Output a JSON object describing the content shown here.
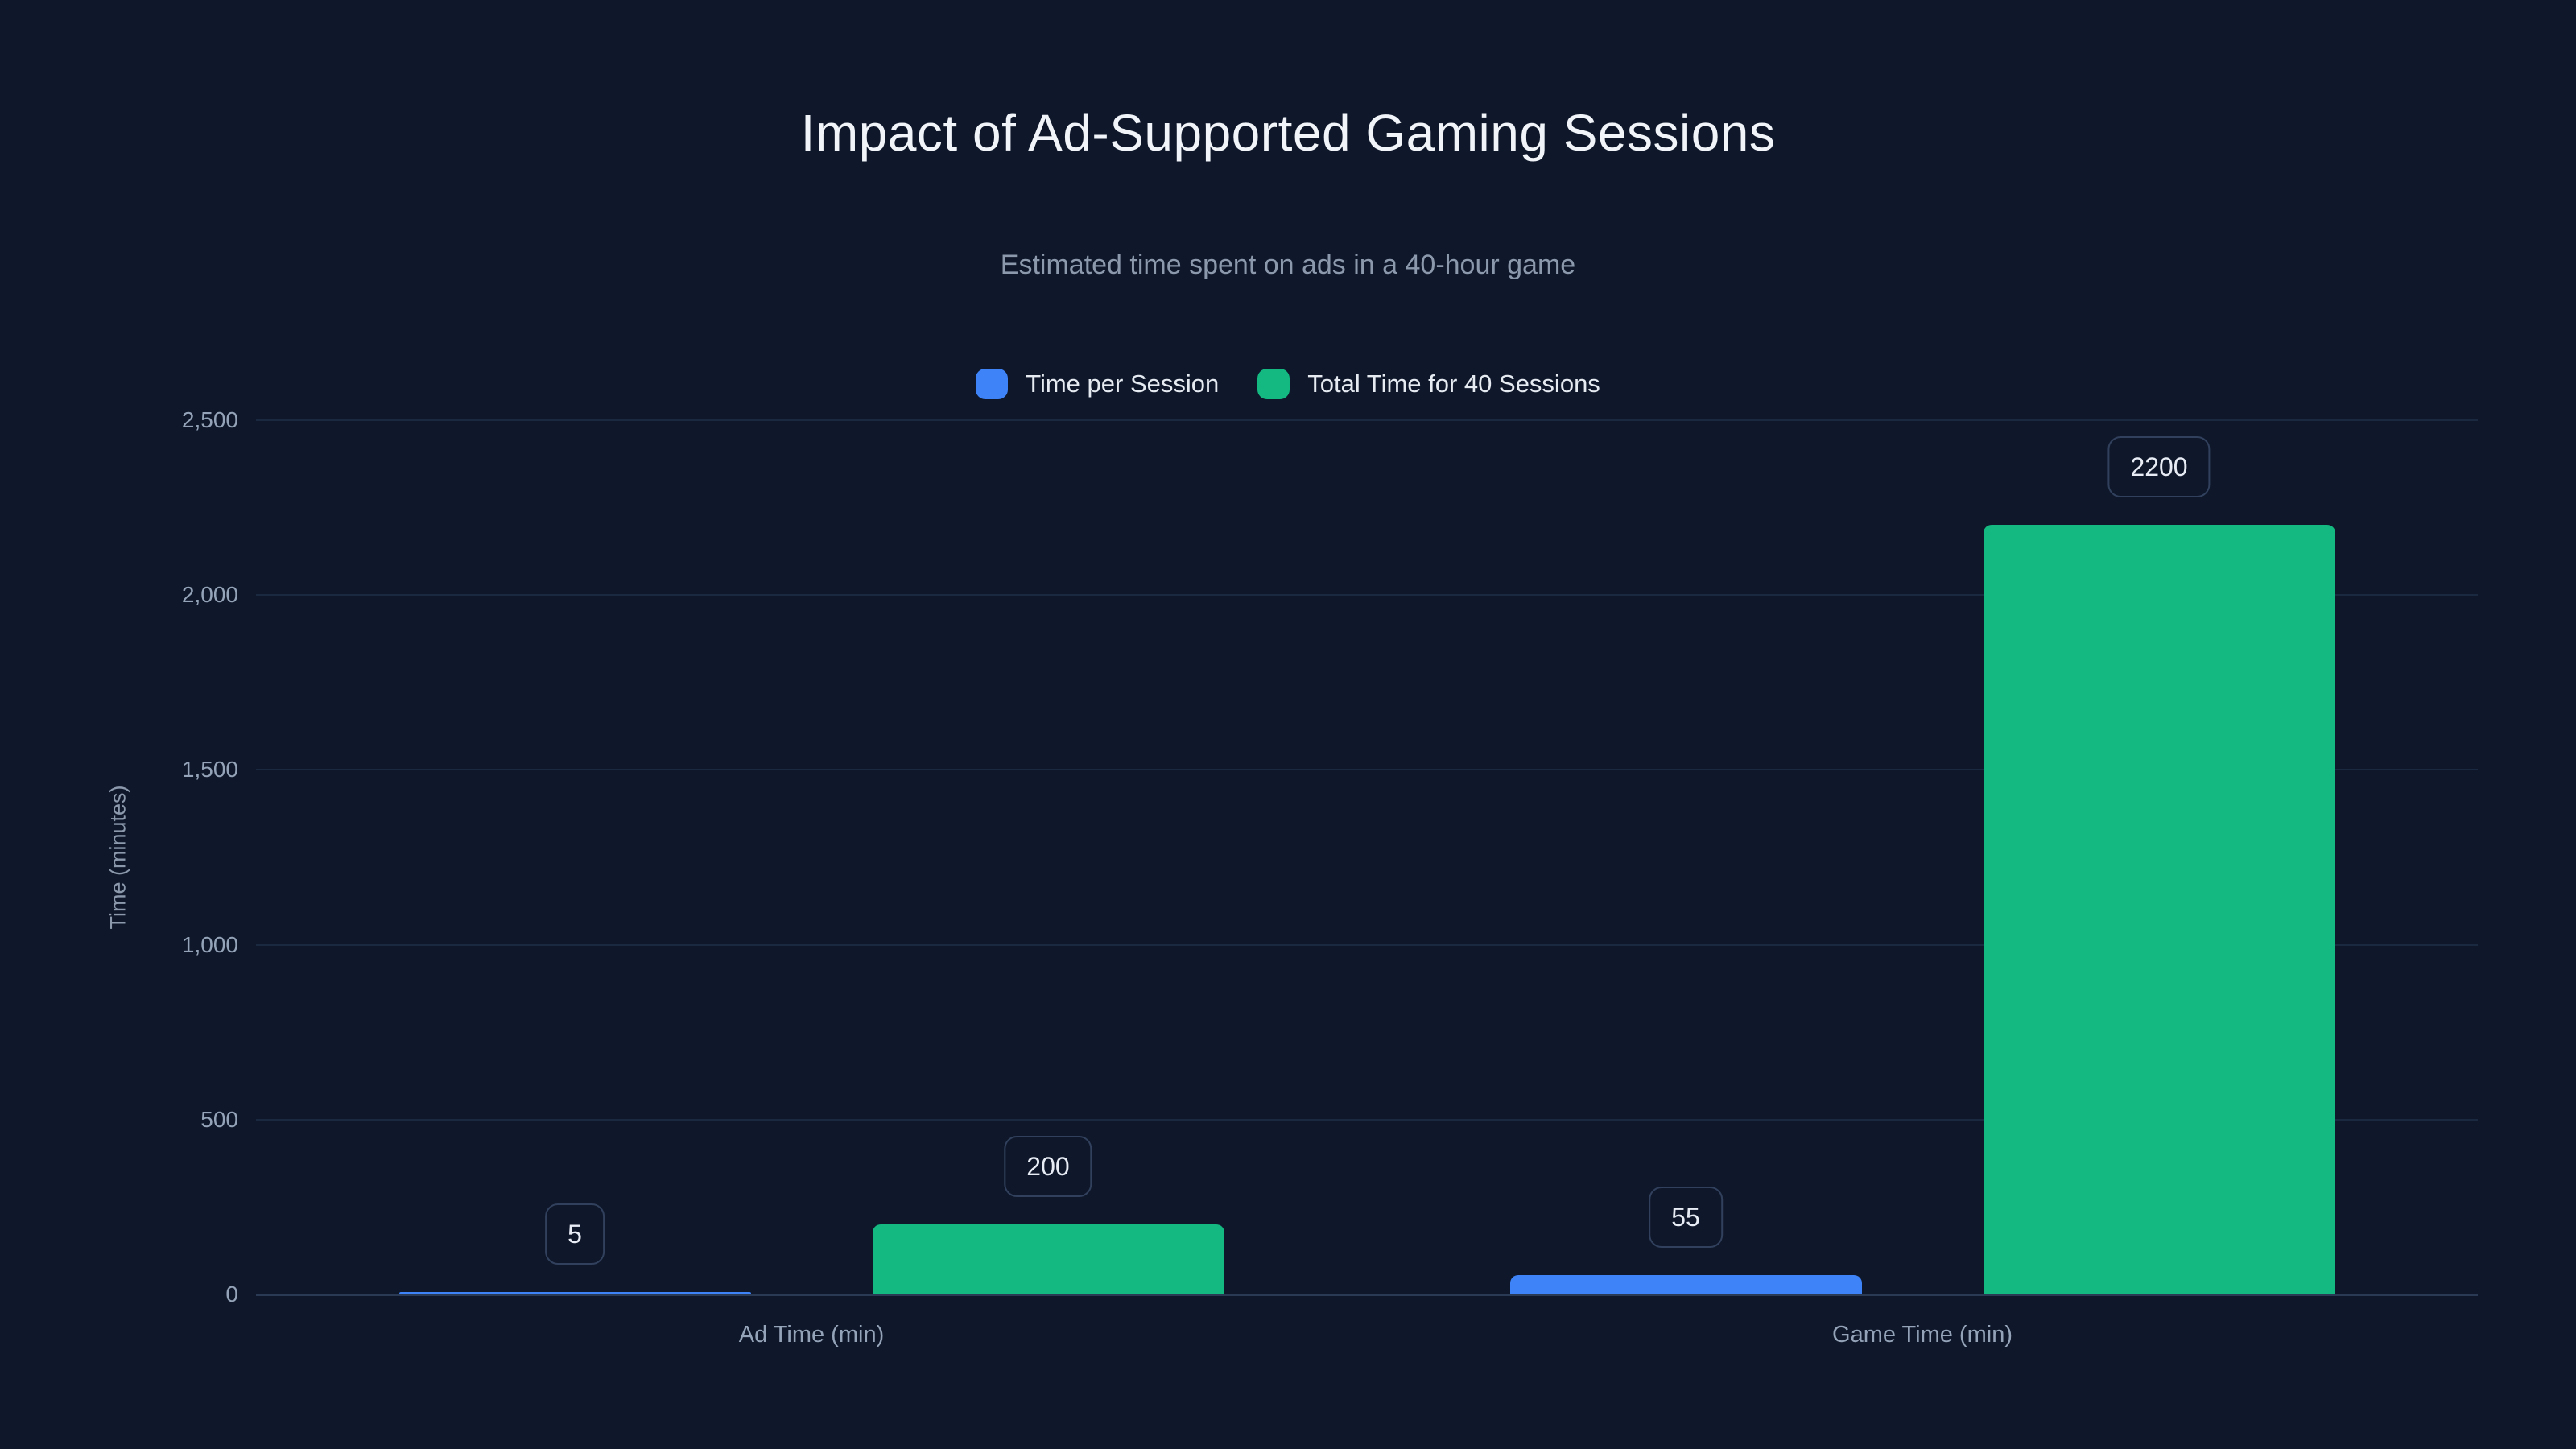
{
  "chart_data": {
    "type": "bar",
    "title": "Impact of Ad-Supported Gaming Sessions",
    "subtitle": "Estimated time spent on ads in a 40-hour game",
    "categories": [
      "Ad Time (min)",
      "Game Time (min)"
    ],
    "series": [
      {
        "name": "Time per Session",
        "color_key": "series_blue",
        "values": [
          5,
          55
        ],
        "value_labels": [
          "5",
          "55"
        ]
      },
      {
        "name": "Total Time for 40 Sessions",
        "color_key": "series_green",
        "values": [
          200,
          2200
        ],
        "value_labels": [
          "200",
          "2200"
        ]
      }
    ],
    "xlabel": "",
    "ylabel": "Time (minutes)",
    "ylim": [
      0,
      2500
    ],
    "y_ticks": [
      {
        "value": 0,
        "label": "0"
      },
      {
        "value": 500,
        "label": "500"
      },
      {
        "value": 1000,
        "label": "1,000"
      },
      {
        "value": 1500,
        "label": "1,500"
      },
      {
        "value": 2000,
        "label": "2,000"
      },
      {
        "value": 2500,
        "label": "2,500"
      }
    ],
    "grid": "horizontal",
    "legend_position": "top"
  },
  "colors": {
    "background": "#0F172A",
    "series_blue": "#3E83F8",
    "series_green": "#13B981",
    "grid_line": "#1B2940",
    "axis_baseline": "#2A3A55",
    "title_text": "#F1F5F9",
    "muted_text": "#94A3B8",
    "legend_text": "#E6EBF2",
    "badge_border": "#31405C",
    "badge_text": "#E8EDF5"
  }
}
